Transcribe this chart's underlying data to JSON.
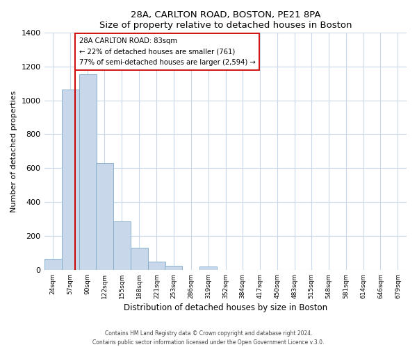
{
  "title": "28A, CARLTON ROAD, BOSTON, PE21 8PA",
  "subtitle": "Size of property relative to detached houses in Boston",
  "xlabel": "Distribution of detached houses by size in Boston",
  "ylabel": "Number of detached properties",
  "bar_color": "#c8d8ea",
  "bar_edge_color": "#7faac8",
  "property_line_x": 83,
  "property_line_color": "#cc0000",
  "annotation_title": "28A CARLTON ROAD: 83sqm",
  "annotation_line1": "← 22% of detached houses are smaller (761)",
  "annotation_line2": "77% of semi-detached houses are larger (2,594) →",
  "annotation_box_color": "#ffffff",
  "annotation_box_edge": "#cc0000",
  "bin_edges": [
    24,
    57,
    90,
    122,
    155,
    188,
    221,
    253,
    286,
    319,
    352,
    384,
    417,
    450,
    483,
    515,
    548,
    581,
    614,
    646,
    679
  ],
  "bin_labels": [
    "24sqm",
    "57sqm",
    "90sqm",
    "122sqm",
    "155sqm",
    "188sqm",
    "221sqm",
    "253sqm",
    "286sqm",
    "319sqm",
    "352sqm",
    "384sqm",
    "417sqm",
    "450sqm",
    "483sqm",
    "515sqm",
    "548sqm",
    "581sqm",
    "614sqm",
    "646sqm",
    "679sqm"
  ],
  "counts": [
    65,
    1065,
    1155,
    630,
    285,
    130,
    48,
    22,
    0,
    20,
    0,
    0,
    0,
    0,
    0,
    0,
    0,
    0,
    0,
    0
  ],
  "ylim": [
    0,
    1400
  ],
  "yticks": [
    0,
    200,
    400,
    600,
    800,
    1000,
    1200,
    1400
  ],
  "footer1": "Contains HM Land Registry data © Crown copyright and database right 2024.",
  "footer2": "Contains public sector information licensed under the Open Government Licence v.3.0."
}
